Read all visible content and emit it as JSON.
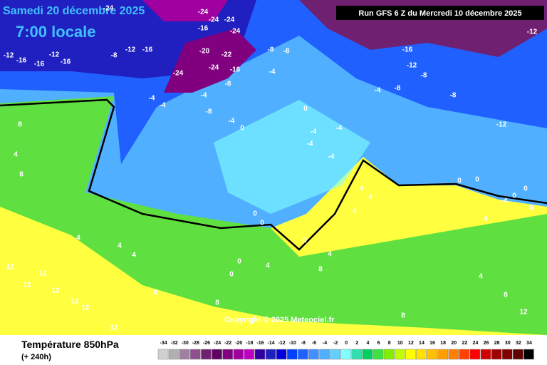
{
  "header": {
    "date": "Samedi 20 décembre 2025",
    "time": "7:00 locale",
    "run": "Run GFS 6 Z du Mercredi 10 décembre 2025"
  },
  "copyright": "Copyright © 2025 Meteociel.fr",
  "footer": {
    "title": "Température 850hPa",
    "lead": "(+ 240h)"
  },
  "legend": {
    "ticks": [
      -34,
      -32,
      -30,
      -28,
      -26,
      -24,
      -22,
      -20,
      -18,
      -16,
      -14,
      -12,
      -10,
      -8,
      -6,
      -4,
      -2,
      0,
      2,
      4,
      6,
      8,
      10,
      12,
      14,
      16,
      18,
      20,
      22,
      24,
      26,
      28,
      30,
      32,
      34
    ],
    "colors": [
      "#d0d0d0",
      "#b0b0b0",
      "#a080a0",
      "#905090",
      "#702070",
      "#600060",
      "#800080",
      "#a000a0",
      "#c000c0",
      "#3000a0",
      "#2020c0",
      "#0000e0",
      "#0040ff",
      "#2060ff",
      "#4090ff",
      "#50b0ff",
      "#60d0ff",
      "#80ffff",
      "#30e0b0",
      "#00d060",
      "#40e040",
      "#80f000",
      "#c0ff00",
      "#ffff00",
      "#ffe000",
      "#ffc000",
      "#ffa000",
      "#ff8000",
      "#ff4000",
      "#ff0000",
      "#d00000",
      "#a00000",
      "#800000",
      "#600000",
      "#000000"
    ]
  },
  "labels": [
    "-12",
    "-16",
    "-16",
    "-12",
    "-16",
    "-8",
    "-12",
    "-16",
    "-24",
    "-24",
    "-24",
    "-24",
    "-16",
    "-24",
    "-20",
    "-22",
    "-24",
    "-24",
    "-16",
    "-8",
    "-8",
    "-8",
    "-4",
    "-4",
    "-4",
    "-4",
    "-8",
    "-4",
    "0",
    "0",
    "-4",
    "-4",
    "-4",
    "-4",
    "-4",
    "-8",
    "-16",
    "-12",
    "-8",
    "-8",
    "-12",
    "-12",
    "8",
    "4",
    "8",
    "4",
    "4",
    "4",
    "12",
    "12",
    "12",
    "12",
    "12",
    "12",
    "12",
    "8",
    "8",
    "0",
    "0",
    "0",
    "4",
    "4",
    "8",
    "4",
    "4",
    "4",
    "0",
    "0",
    "-4",
    "0",
    "0",
    "0",
    "4",
    "4",
    "8",
    "12",
    "8",
    "0",
    "0"
  ]
}
